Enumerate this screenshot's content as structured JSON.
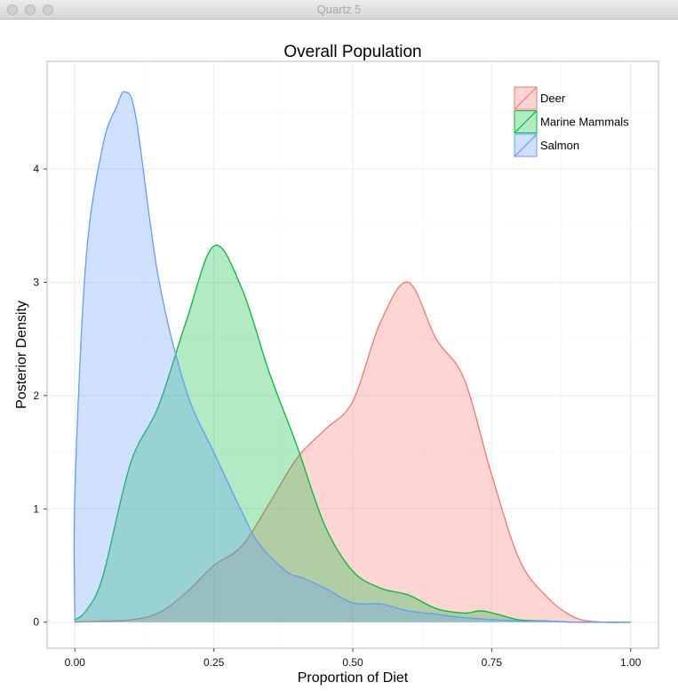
{
  "window": {
    "title": "Quartz 5"
  },
  "chart_data": {
    "type": "area",
    "title": "Overall Population",
    "xlabel": "Proportion of Diet",
    "ylabel": "Posterior Density",
    "xlim": [
      -0.05,
      1.05
    ],
    "ylim": [
      -0.23,
      4.95
    ],
    "xticks": [
      0.0,
      0.25,
      0.5,
      0.75,
      1.0
    ],
    "xtick_labels": [
      "0.00",
      "0.25",
      "0.50",
      "0.75",
      "1.00"
    ],
    "yticks": [
      0,
      1,
      2,
      3,
      4
    ],
    "ytick_labels": [
      "0",
      "1",
      "2",
      "3",
      "4"
    ],
    "grid": true,
    "legend_position": "top-right",
    "series": [
      {
        "name": "Deer",
        "color": "#F8766D",
        "fill": "#F8766D",
        "x": [
          0.0,
          0.05,
          0.1,
          0.15,
          0.2,
          0.25,
          0.3,
          0.35,
          0.4,
          0.45,
          0.5,
          0.55,
          0.6,
          0.65,
          0.7,
          0.75,
          0.8,
          0.85,
          0.9,
          0.95,
          1.0
        ],
        "y": [
          0.0,
          0.01,
          0.02,
          0.08,
          0.26,
          0.5,
          0.67,
          1.05,
          1.45,
          1.7,
          1.95,
          2.65,
          3.0,
          2.5,
          2.15,
          1.3,
          0.55,
          0.22,
          0.04,
          0.0,
          0.0
        ]
      },
      {
        "name": "Marine Mammals",
        "color": "#00BA38",
        "fill": "#00BA38",
        "x": [
          0.0,
          0.02,
          0.05,
          0.1,
          0.15,
          0.2,
          0.25,
          0.3,
          0.35,
          0.4,
          0.45,
          0.5,
          0.55,
          0.6,
          0.65,
          0.7,
          0.73,
          0.76,
          0.8,
          0.85,
          0.9,
          1.0
        ],
        "y": [
          0.02,
          0.1,
          0.4,
          1.4,
          1.9,
          2.65,
          3.32,
          2.95,
          2.2,
          1.55,
          0.85,
          0.45,
          0.3,
          0.24,
          0.12,
          0.08,
          0.1,
          0.07,
          0.02,
          0.01,
          0.0,
          0.0
        ]
      },
      {
        "name": "Salmon",
        "color": "#619CFF",
        "fill": "#619CFF",
        "x": [
          0.0,
          0.0,
          0.02,
          0.05,
          0.075,
          0.09,
          0.11,
          0.15,
          0.2,
          0.25,
          0.3,
          0.33,
          0.38,
          0.41,
          0.45,
          0.5,
          0.55,
          0.6,
          0.65,
          0.7,
          0.8,
          0.85,
          0.9,
          1.0
        ],
        "y": [
          0.0,
          1.15,
          3.2,
          4.2,
          4.55,
          4.68,
          4.45,
          3.05,
          2.05,
          1.5,
          0.98,
          0.7,
          0.45,
          0.39,
          0.3,
          0.17,
          0.16,
          0.1,
          0.07,
          0.04,
          0.01,
          0.01,
          0.0,
          0.0
        ]
      }
    ]
  }
}
